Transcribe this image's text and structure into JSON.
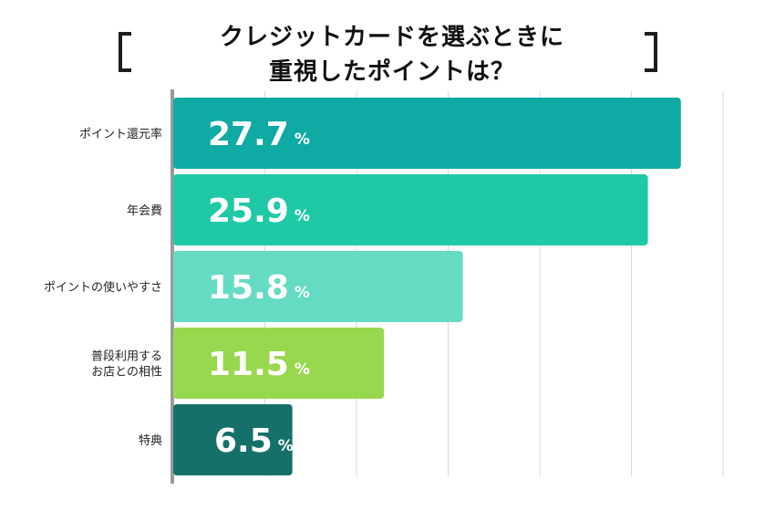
{
  "chart_data": {
    "type": "bar",
    "orientation": "horizontal",
    "title_lines": [
      "クレジットカードを選ぶときに",
      "重視したポイントは？"
    ],
    "categories": [
      [
        "ポイント還元率"
      ],
      [
        "年会費"
      ],
      [
        "ポイントの使いやすさ"
      ],
      [
        "普段利用する",
        "お店との相性"
      ],
      [
        "特典"
      ]
    ],
    "values": [
      27.7,
      25.9,
      15.8,
      11.5,
      6.5
    ],
    "value_labels": [
      "27.7",
      "25.9",
      "15.8",
      "11.5",
      "6.5"
    ],
    "unit": "%",
    "colors": [
      "#10aaa4",
      "#1fc9a6",
      "#66dbc4",
      "#97d84e",
      "#16706a"
    ],
    "xlim": [
      0,
      30
    ],
    "grid": true
  }
}
